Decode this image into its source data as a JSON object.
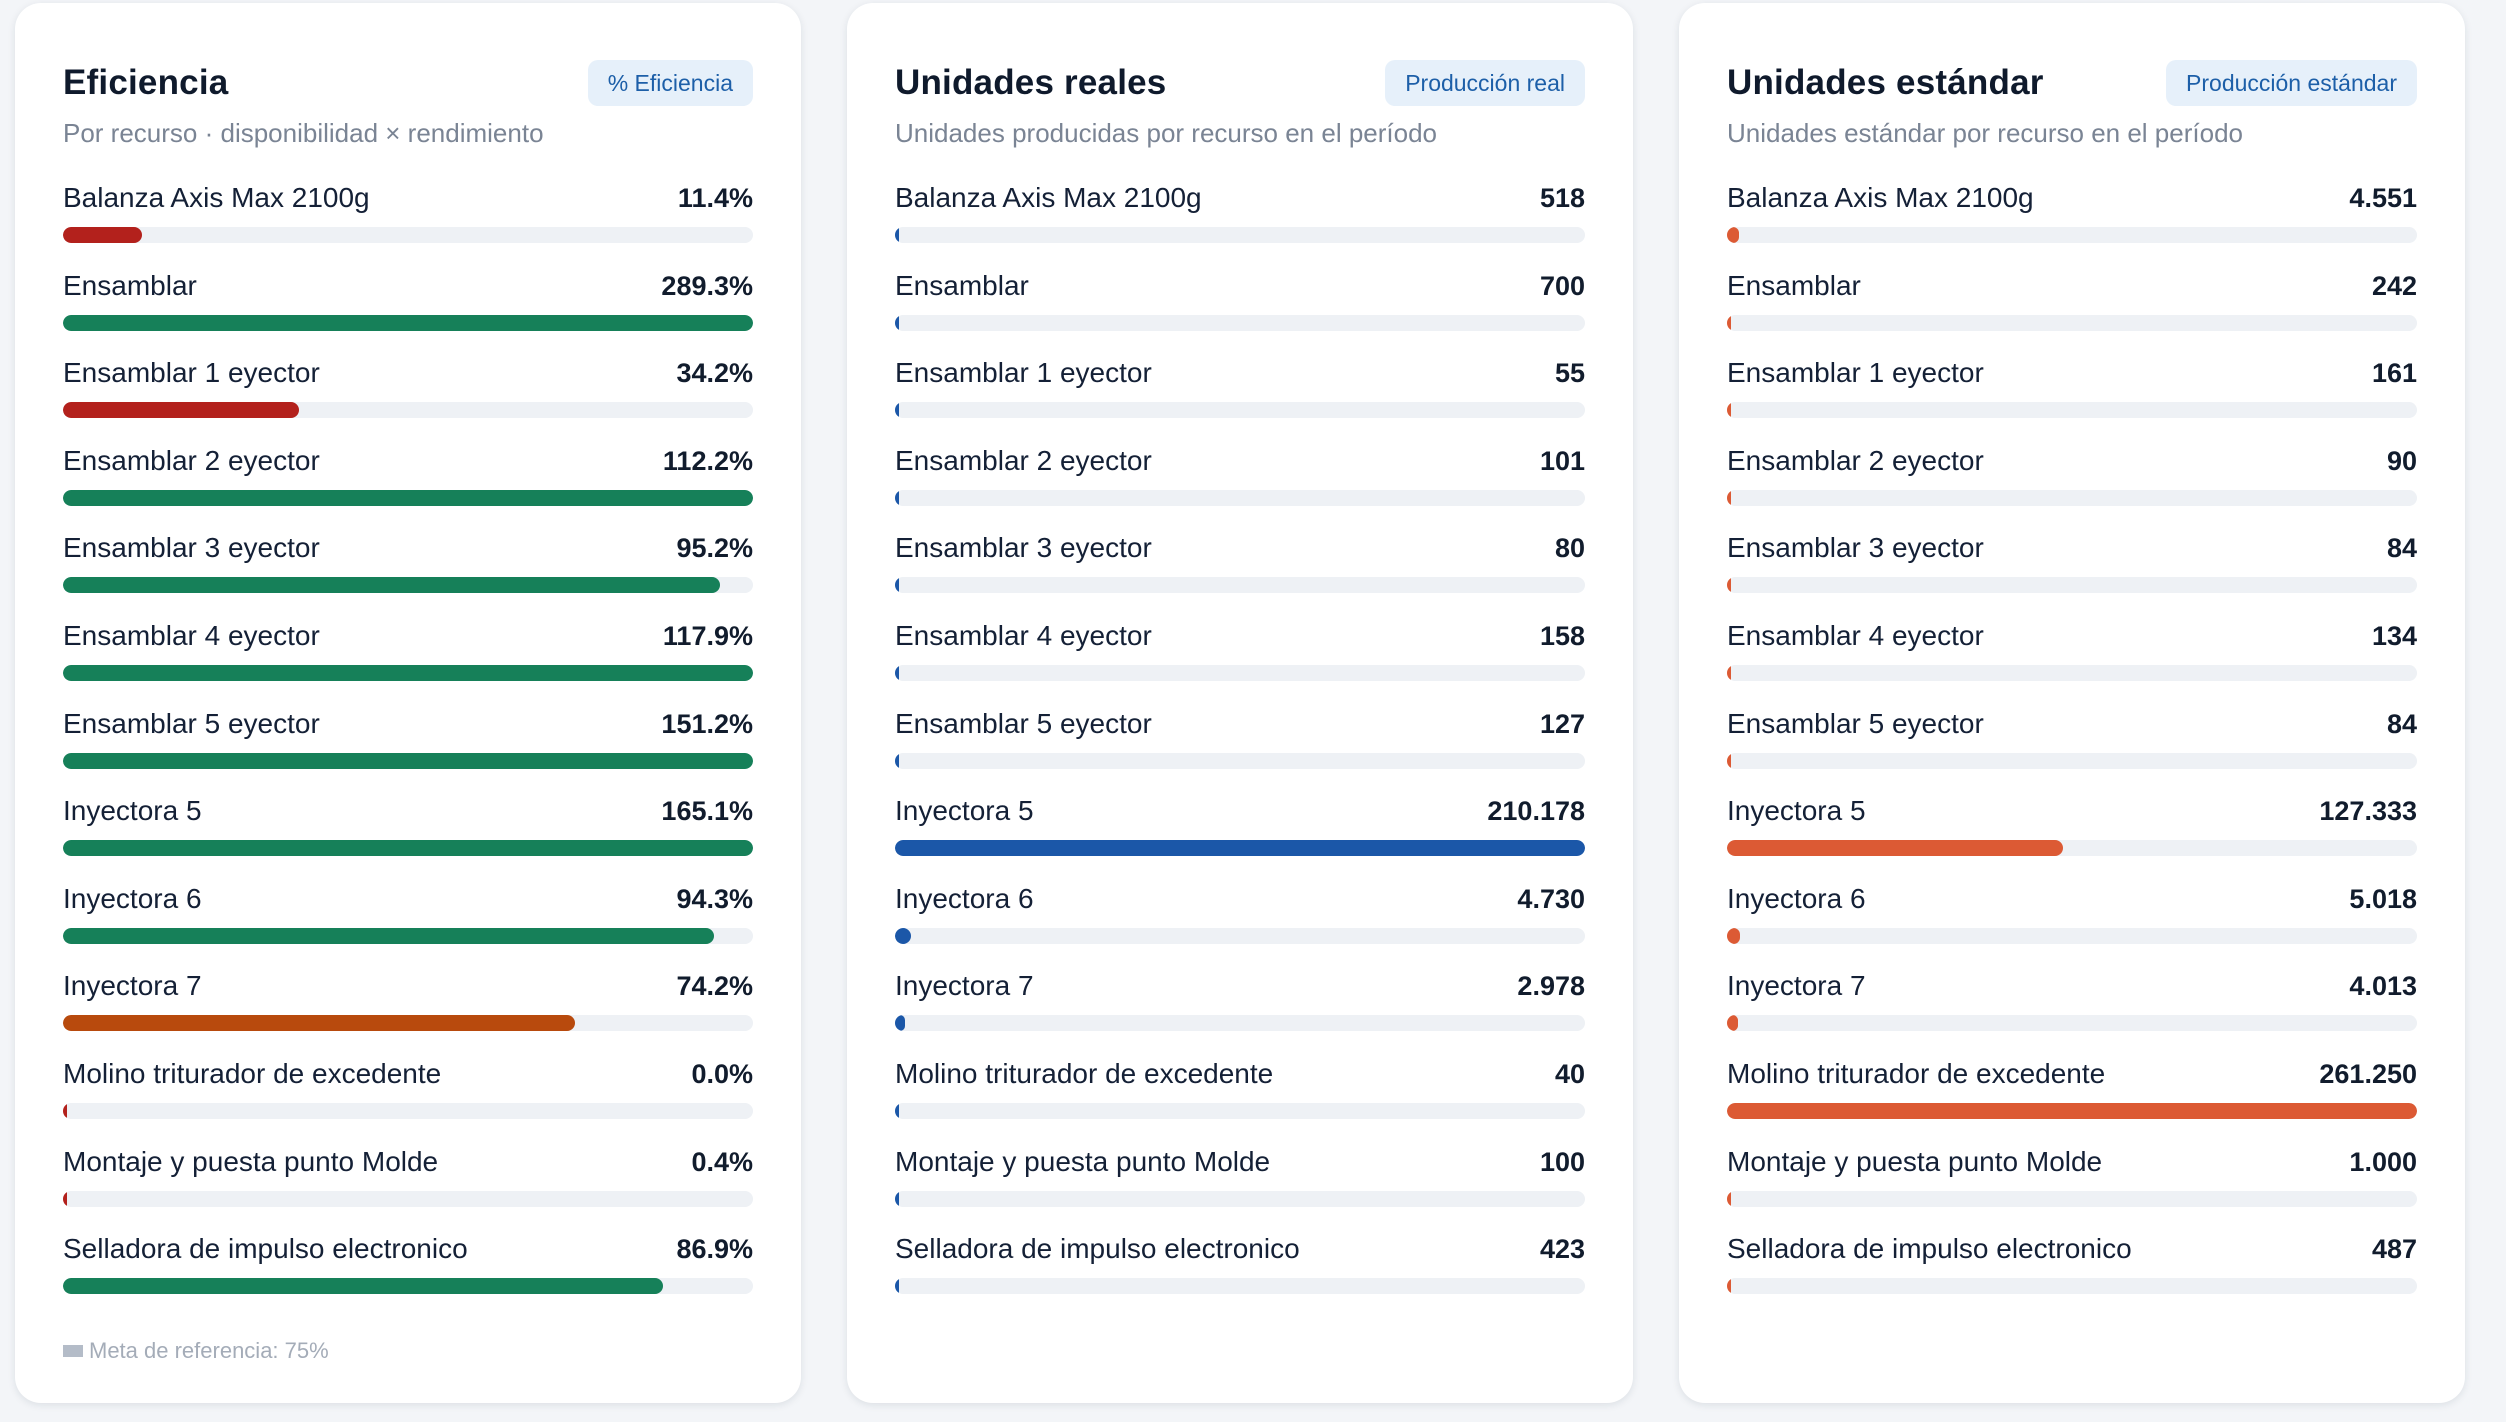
{
  "colors": {
    "good": "#168059",
    "bad": "#b3211c",
    "warn": "#b84a0d",
    "real": "#1b57a8",
    "std": "#dc5a34",
    "track": "#eef1f5"
  },
  "cards": [
    {
      "id": "eficiencia",
      "title": "Eficiencia",
      "badge": "% Eficiencia",
      "subtitle": "Por recurso · disponibilidad × rendimiento",
      "fill_mode": "efficiency",
      "max": 100,
      "note": "Meta de referencia: 75%",
      "rows": [
        {
          "label": "Balanza Axis Max 2100g",
          "value": "11.4%",
          "amount": 11.4
        },
        {
          "label": "Ensamblar",
          "value": "289.3%",
          "amount": 289.3
        },
        {
          "label": "Ensamblar 1 eyector",
          "value": "34.2%",
          "amount": 34.2
        },
        {
          "label": "Ensamblar 2 eyector",
          "value": "112.2%",
          "amount": 112.2
        },
        {
          "label": "Ensamblar 3 eyector",
          "value": "95.2%",
          "amount": 95.2
        },
        {
          "label": "Ensamblar 4 eyector",
          "value": "117.9%",
          "amount": 117.9
        },
        {
          "label": "Ensamblar 5 eyector",
          "value": "151.2%",
          "amount": 151.2
        },
        {
          "label": "Inyectora 5",
          "value": "165.1%",
          "amount": 165.1
        },
        {
          "label": "Inyectora 6",
          "value": "94.3%",
          "amount": 94.3
        },
        {
          "label": "Inyectora 7",
          "value": "74.2%",
          "amount": 74.2
        },
        {
          "label": "Molino triturador de excedente",
          "value": "0.0%",
          "amount": 0.0
        },
        {
          "label": "Montaje y puesta punto Molde",
          "value": "0.4%",
          "amount": 0.4
        },
        {
          "label": "Selladora de impulso electronico",
          "value": "86.9%",
          "amount": 86.9
        }
      ]
    },
    {
      "id": "unidades-reales",
      "title": "Unidades reales",
      "badge": "Producción real",
      "subtitle": "Unidades producidas por recurso en el período",
      "fill_mode": "real",
      "max": 210178,
      "note": "",
      "rows": [
        {
          "label": "Balanza Axis Max 2100g",
          "value": "518",
          "amount": 518
        },
        {
          "label": "Ensamblar",
          "value": "700",
          "amount": 700
        },
        {
          "label": "Ensamblar 1 eyector",
          "value": "55",
          "amount": 55
        },
        {
          "label": "Ensamblar 2 eyector",
          "value": "101",
          "amount": 101
        },
        {
          "label": "Ensamblar 3 eyector",
          "value": "80",
          "amount": 80
        },
        {
          "label": "Ensamblar 4 eyector",
          "value": "158",
          "amount": 158
        },
        {
          "label": "Ensamblar 5 eyector",
          "value": "127",
          "amount": 127
        },
        {
          "label": "Inyectora 5",
          "value": "210.178",
          "amount": 210178
        },
        {
          "label": "Inyectora 6",
          "value": "4.730",
          "amount": 4730
        },
        {
          "label": "Inyectora 7",
          "value": "2.978",
          "amount": 2978
        },
        {
          "label": "Molino triturador de excedente",
          "value": "40",
          "amount": 40
        },
        {
          "label": "Montaje y puesta punto Molde",
          "value": "100",
          "amount": 100
        },
        {
          "label": "Selladora de impulso electronico",
          "value": "423",
          "amount": 423
        }
      ]
    },
    {
      "id": "unidades-estandar",
      "title": "Unidades estándar",
      "badge": "Producción estándar",
      "subtitle": "Unidades estándar por recurso en el período",
      "fill_mode": "std",
      "max": 261250,
      "note": "",
      "rows": [
        {
          "label": "Balanza Axis Max 2100g",
          "value": "4.551",
          "amount": 4551
        },
        {
          "label": "Ensamblar",
          "value": "242",
          "amount": 242
        },
        {
          "label": "Ensamblar 1 eyector",
          "value": "161",
          "amount": 161
        },
        {
          "label": "Ensamblar 2 eyector",
          "value": "90",
          "amount": 90
        },
        {
          "label": "Ensamblar 3 eyector",
          "value": "84",
          "amount": 84
        },
        {
          "label": "Ensamblar 4 eyector",
          "value": "134",
          "amount": 134
        },
        {
          "label": "Ensamblar 5 eyector",
          "value": "84",
          "amount": 84
        },
        {
          "label": "Inyectora 5",
          "value": "127.333",
          "amount": 127333
        },
        {
          "label": "Inyectora 6",
          "value": "5.018",
          "amount": 5018
        },
        {
          "label": "Inyectora 7",
          "value": "4.013",
          "amount": 4013
        },
        {
          "label": "Molino triturador de excedente",
          "value": "261.250",
          "amount": 261250
        },
        {
          "label": "Montaje y puesta punto Molde",
          "value": "1.000",
          "amount": 1000
        },
        {
          "label": "Selladora de impulso electronico",
          "value": "487",
          "amount": 487
        }
      ]
    }
  ]
}
